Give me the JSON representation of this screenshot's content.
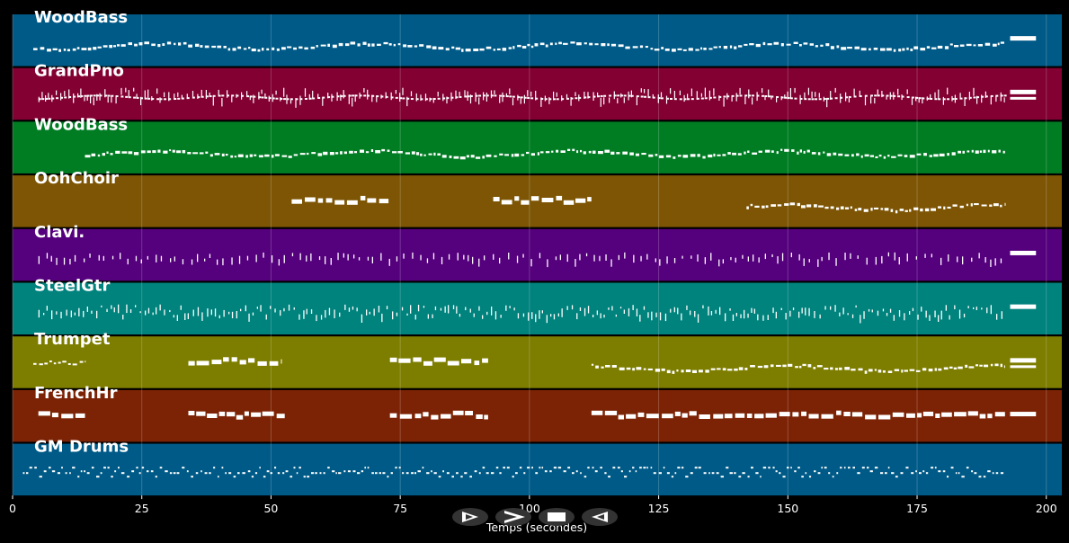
{
  "chart_data": {
    "type": "piano-roll",
    "xlabel": "Temps (secondes)",
    "xlim": [
      0,
      203
    ],
    "xticks": [
      0,
      25,
      50,
      75,
      100,
      125,
      150,
      175,
      200
    ],
    "grid": true,
    "tracks": [
      {
        "name": "WoodBass",
        "color": "#005a87",
        "segments": [
          [
            4,
            192,
            "dense-line"
          ],
          [
            193,
            198,
            "block"
          ]
        ]
      },
      {
        "name": "GrandPno",
        "color": "#820032",
        "segments": [
          [
            5,
            192,
            "dense-chords"
          ],
          [
            193,
            198,
            "block"
          ]
        ]
      },
      {
        "name": "WoodBass",
        "color": "#007d23",
        "segments": [
          [
            14,
            192,
            "dense-line"
          ]
        ]
      },
      {
        "name": "OohChoir",
        "color": "#7d5505",
        "segments": [
          [
            54,
            73,
            "long-notes"
          ],
          [
            93,
            112,
            "long-notes"
          ],
          [
            142,
            192,
            "dense-line"
          ]
        ]
      },
      {
        "name": "Clavi.",
        "color": "#55007d",
        "segments": [
          [
            5,
            192,
            "sparse-ticks"
          ],
          [
            193,
            198,
            "block"
          ]
        ]
      },
      {
        "name": "SteelGtr",
        "color": "#00827d",
        "segments": [
          [
            5,
            192,
            "arpeggio"
          ],
          [
            193,
            198,
            "block"
          ]
        ]
      },
      {
        "name": "Trumpet",
        "color": "#7d7d00",
        "segments": [
          [
            4,
            14,
            "short-line"
          ],
          [
            34,
            52,
            "long-notes"
          ],
          [
            73,
            92,
            "long-notes"
          ],
          [
            112,
            192,
            "dense-line"
          ],
          [
            193,
            198,
            "block"
          ]
        ]
      },
      {
        "name": "FrenchHr",
        "color": "#7d2305",
        "segments": [
          [
            5,
            14,
            "long-notes"
          ],
          [
            34,
            53,
            "long-notes"
          ],
          [
            73,
            92,
            "long-notes"
          ],
          [
            112,
            192,
            "long-notes"
          ],
          [
            193,
            198,
            "block"
          ]
        ]
      },
      {
        "name": "GM Drums",
        "color": "#005a87",
        "segments": [
          [
            2,
            192,
            "drums"
          ]
        ]
      }
    ]
  },
  "controls": {
    "play": "play-icon",
    "fast_forward": "fast-forward-icon",
    "stop": "stop-icon",
    "rewind": "rewind-icon"
  }
}
